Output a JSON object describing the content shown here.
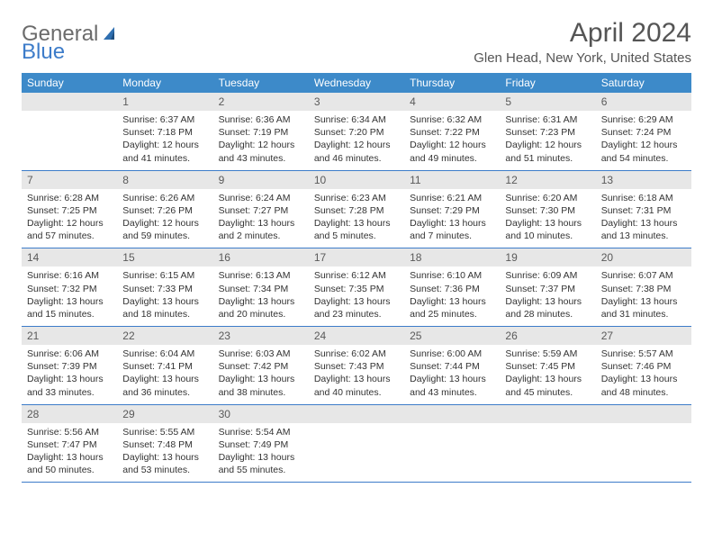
{
  "logo": {
    "part1": "General",
    "part2": "Blue"
  },
  "title": "April 2024",
  "location": "Glen Head, New York, United States",
  "colors": {
    "header_bg": "#3d8ac9",
    "header_text": "#ffffff",
    "daynum_bg": "#e7e7e7",
    "daynum_text": "#5a5a5a",
    "body_text": "#333333",
    "rule": "#3d7cc9",
    "logo_gray": "#6b6b6b",
    "logo_blue": "#3d7cc9"
  },
  "dayHeaders": [
    "Sunday",
    "Monday",
    "Tuesday",
    "Wednesday",
    "Thursday",
    "Friday",
    "Saturday"
  ],
  "weeks": [
    [
      null,
      {
        "n": "1",
        "sr": "Sunrise: 6:37 AM",
        "ss": "Sunset: 7:18 PM",
        "dl": "Daylight: 12 hours and 41 minutes."
      },
      {
        "n": "2",
        "sr": "Sunrise: 6:36 AM",
        "ss": "Sunset: 7:19 PM",
        "dl": "Daylight: 12 hours and 43 minutes."
      },
      {
        "n": "3",
        "sr": "Sunrise: 6:34 AM",
        "ss": "Sunset: 7:20 PM",
        "dl": "Daylight: 12 hours and 46 minutes."
      },
      {
        "n": "4",
        "sr": "Sunrise: 6:32 AM",
        "ss": "Sunset: 7:22 PM",
        "dl": "Daylight: 12 hours and 49 minutes."
      },
      {
        "n": "5",
        "sr": "Sunrise: 6:31 AM",
        "ss": "Sunset: 7:23 PM",
        "dl": "Daylight: 12 hours and 51 minutes."
      },
      {
        "n": "6",
        "sr": "Sunrise: 6:29 AM",
        "ss": "Sunset: 7:24 PM",
        "dl": "Daylight: 12 hours and 54 minutes."
      }
    ],
    [
      {
        "n": "7",
        "sr": "Sunrise: 6:28 AM",
        "ss": "Sunset: 7:25 PM",
        "dl": "Daylight: 12 hours and 57 minutes."
      },
      {
        "n": "8",
        "sr": "Sunrise: 6:26 AM",
        "ss": "Sunset: 7:26 PM",
        "dl": "Daylight: 12 hours and 59 minutes."
      },
      {
        "n": "9",
        "sr": "Sunrise: 6:24 AM",
        "ss": "Sunset: 7:27 PM",
        "dl": "Daylight: 13 hours and 2 minutes."
      },
      {
        "n": "10",
        "sr": "Sunrise: 6:23 AM",
        "ss": "Sunset: 7:28 PM",
        "dl": "Daylight: 13 hours and 5 minutes."
      },
      {
        "n": "11",
        "sr": "Sunrise: 6:21 AM",
        "ss": "Sunset: 7:29 PM",
        "dl": "Daylight: 13 hours and 7 minutes."
      },
      {
        "n": "12",
        "sr": "Sunrise: 6:20 AM",
        "ss": "Sunset: 7:30 PM",
        "dl": "Daylight: 13 hours and 10 minutes."
      },
      {
        "n": "13",
        "sr": "Sunrise: 6:18 AM",
        "ss": "Sunset: 7:31 PM",
        "dl": "Daylight: 13 hours and 13 minutes."
      }
    ],
    [
      {
        "n": "14",
        "sr": "Sunrise: 6:16 AM",
        "ss": "Sunset: 7:32 PM",
        "dl": "Daylight: 13 hours and 15 minutes."
      },
      {
        "n": "15",
        "sr": "Sunrise: 6:15 AM",
        "ss": "Sunset: 7:33 PM",
        "dl": "Daylight: 13 hours and 18 minutes."
      },
      {
        "n": "16",
        "sr": "Sunrise: 6:13 AM",
        "ss": "Sunset: 7:34 PM",
        "dl": "Daylight: 13 hours and 20 minutes."
      },
      {
        "n": "17",
        "sr": "Sunrise: 6:12 AM",
        "ss": "Sunset: 7:35 PM",
        "dl": "Daylight: 13 hours and 23 minutes."
      },
      {
        "n": "18",
        "sr": "Sunrise: 6:10 AM",
        "ss": "Sunset: 7:36 PM",
        "dl": "Daylight: 13 hours and 25 minutes."
      },
      {
        "n": "19",
        "sr": "Sunrise: 6:09 AM",
        "ss": "Sunset: 7:37 PM",
        "dl": "Daylight: 13 hours and 28 minutes."
      },
      {
        "n": "20",
        "sr": "Sunrise: 6:07 AM",
        "ss": "Sunset: 7:38 PM",
        "dl": "Daylight: 13 hours and 31 minutes."
      }
    ],
    [
      {
        "n": "21",
        "sr": "Sunrise: 6:06 AM",
        "ss": "Sunset: 7:39 PM",
        "dl": "Daylight: 13 hours and 33 minutes."
      },
      {
        "n": "22",
        "sr": "Sunrise: 6:04 AM",
        "ss": "Sunset: 7:41 PM",
        "dl": "Daylight: 13 hours and 36 minutes."
      },
      {
        "n": "23",
        "sr": "Sunrise: 6:03 AM",
        "ss": "Sunset: 7:42 PM",
        "dl": "Daylight: 13 hours and 38 minutes."
      },
      {
        "n": "24",
        "sr": "Sunrise: 6:02 AM",
        "ss": "Sunset: 7:43 PM",
        "dl": "Daylight: 13 hours and 40 minutes."
      },
      {
        "n": "25",
        "sr": "Sunrise: 6:00 AM",
        "ss": "Sunset: 7:44 PM",
        "dl": "Daylight: 13 hours and 43 minutes."
      },
      {
        "n": "26",
        "sr": "Sunrise: 5:59 AM",
        "ss": "Sunset: 7:45 PM",
        "dl": "Daylight: 13 hours and 45 minutes."
      },
      {
        "n": "27",
        "sr": "Sunrise: 5:57 AM",
        "ss": "Sunset: 7:46 PM",
        "dl": "Daylight: 13 hours and 48 minutes."
      }
    ],
    [
      {
        "n": "28",
        "sr": "Sunrise: 5:56 AM",
        "ss": "Sunset: 7:47 PM",
        "dl": "Daylight: 13 hours and 50 minutes."
      },
      {
        "n": "29",
        "sr": "Sunrise: 5:55 AM",
        "ss": "Sunset: 7:48 PM",
        "dl": "Daylight: 13 hours and 53 minutes."
      },
      {
        "n": "30",
        "sr": "Sunrise: 5:54 AM",
        "ss": "Sunset: 7:49 PM",
        "dl": "Daylight: 13 hours and 55 minutes."
      },
      null,
      null,
      null,
      null
    ]
  ]
}
